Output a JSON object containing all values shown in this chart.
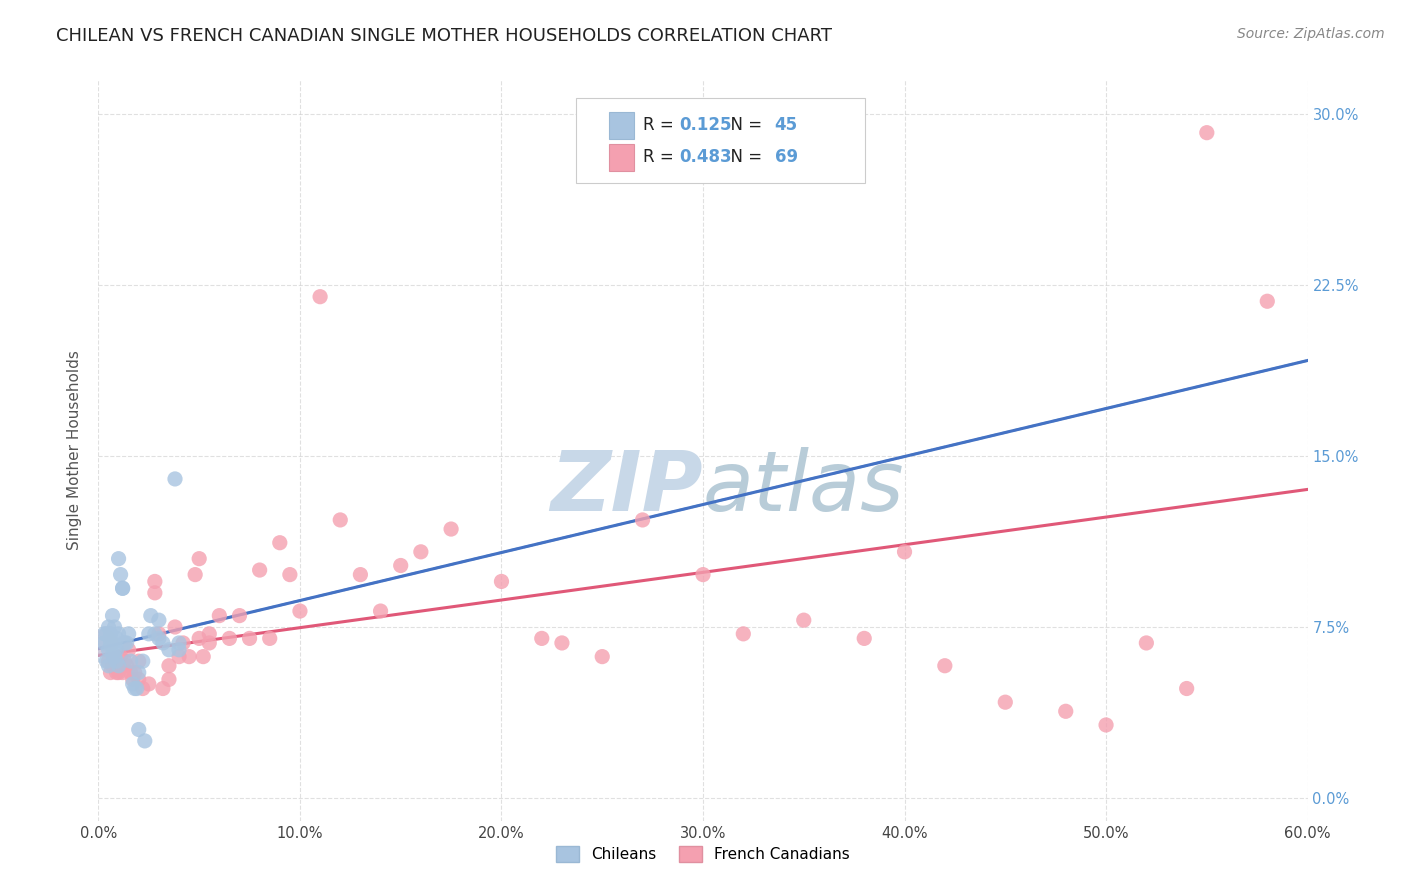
{
  "title": "CHILEAN VS FRENCH CANADIAN SINGLE MOTHER HOUSEHOLDS CORRELATION CHART",
  "source": "Source: ZipAtlas.com",
  "ylabel": "Single Mother Households",
  "xlabel_ticks": [
    "0.0%",
    "10.0%",
    "20.0%",
    "30.0%",
    "40.0%",
    "50.0%",
    "60.0%"
  ],
  "ylabel_ticks": [
    "0.0%",
    "7.5%",
    "15.0%",
    "22.5%",
    "30.0%"
  ],
  "xlim": [
    0.0,
    0.6
  ],
  "ylim": [
    -0.01,
    0.315
  ],
  "chilean_R": 0.125,
  "chilean_N": 45,
  "french_R": 0.483,
  "french_N": 69,
  "chilean_color": "#a8c4e0",
  "french_color": "#f4a0b0",
  "chilean_line_color": "#4472c4",
  "french_line_color": "#e05878",
  "dashed_line_color": "#90b8d8",
  "watermark_color": "#d0dce8",
  "watermark_fontsize": 60,
  "legend_chileans": "Chileans",
  "legend_french": "French Canadians",
  "chilean_points": [
    [
      0.005,
      0.075
    ],
    [
      0.006,
      0.072
    ],
    [
      0.007,
      0.08
    ],
    [
      0.007,
      0.068
    ],
    [
      0.008,
      0.075
    ],
    [
      0.009,
      0.07
    ],
    [
      0.009,
      0.065
    ],
    [
      0.01,
      0.072
    ],
    [
      0.01,
      0.105
    ],
    [
      0.011,
      0.098
    ],
    [
      0.012,
      0.092
    ],
    [
      0.012,
      0.092
    ],
    [
      0.013,
      0.068
    ],
    [
      0.014,
      0.068
    ],
    [
      0.015,
      0.072
    ],
    [
      0.016,
      0.06
    ],
    [
      0.017,
      0.05
    ],
    [
      0.018,
      0.048
    ],
    [
      0.019,
      0.048
    ],
    [
      0.02,
      0.055
    ],
    [
      0.022,
      0.06
    ],
    [
      0.025,
      0.072
    ],
    [
      0.026,
      0.08
    ],
    [
      0.028,
      0.072
    ],
    [
      0.03,
      0.078
    ],
    [
      0.03,
      0.07
    ],
    [
      0.032,
      0.068
    ],
    [
      0.035,
      0.065
    ],
    [
      0.038,
      0.14
    ],
    [
      0.04,
      0.068
    ],
    [
      0.04,
      0.065
    ],
    [
      0.003,
      0.072
    ],
    [
      0.003,
      0.068
    ],
    [
      0.004,
      0.072
    ],
    [
      0.005,
      0.065
    ],
    [
      0.006,
      0.068
    ],
    [
      0.007,
      0.063
    ],
    [
      0.008,
      0.065
    ],
    [
      0.008,
      0.062
    ],
    [
      0.009,
      0.06
    ],
    [
      0.01,
      0.058
    ],
    [
      0.004,
      0.06
    ],
    [
      0.005,
      0.058
    ],
    [
      0.02,
      0.03
    ],
    [
      0.023,
      0.025
    ]
  ],
  "french_points": [
    [
      0.005,
      0.06
    ],
    [
      0.006,
      0.055
    ],
    [
      0.007,
      0.058
    ],
    [
      0.008,
      0.06
    ],
    [
      0.009,
      0.055
    ],
    [
      0.01,
      0.058
    ],
    [
      0.01,
      0.055
    ],
    [
      0.011,
      0.062
    ],
    [
      0.012,
      0.055
    ],
    [
      0.013,
      0.06
    ],
    [
      0.014,
      0.058
    ],
    [
      0.015,
      0.065
    ],
    [
      0.016,
      0.055
    ],
    [
      0.017,
      0.052
    ],
    [
      0.018,
      0.055
    ],
    [
      0.02,
      0.06
    ],
    [
      0.02,
      0.052
    ],
    [
      0.022,
      0.048
    ],
    [
      0.025,
      0.05
    ],
    [
      0.028,
      0.095
    ],
    [
      0.028,
      0.09
    ],
    [
      0.03,
      0.072
    ],
    [
      0.032,
      0.048
    ],
    [
      0.035,
      0.058
    ],
    [
      0.035,
      0.052
    ],
    [
      0.038,
      0.075
    ],
    [
      0.04,
      0.062
    ],
    [
      0.042,
      0.068
    ],
    [
      0.045,
      0.062
    ],
    [
      0.048,
      0.098
    ],
    [
      0.05,
      0.105
    ],
    [
      0.05,
      0.07
    ],
    [
      0.052,
      0.062
    ],
    [
      0.055,
      0.072
    ],
    [
      0.055,
      0.068
    ],
    [
      0.06,
      0.08
    ],
    [
      0.065,
      0.07
    ],
    [
      0.07,
      0.08
    ],
    [
      0.075,
      0.07
    ],
    [
      0.08,
      0.1
    ],
    [
      0.085,
      0.07
    ],
    [
      0.09,
      0.112
    ],
    [
      0.095,
      0.098
    ],
    [
      0.1,
      0.082
    ],
    [
      0.11,
      0.22
    ],
    [
      0.12,
      0.122
    ],
    [
      0.13,
      0.098
    ],
    [
      0.14,
      0.082
    ],
    [
      0.15,
      0.102
    ],
    [
      0.16,
      0.108
    ],
    [
      0.175,
      0.118
    ],
    [
      0.2,
      0.095
    ],
    [
      0.22,
      0.07
    ],
    [
      0.23,
      0.068
    ],
    [
      0.25,
      0.062
    ],
    [
      0.27,
      0.122
    ],
    [
      0.3,
      0.098
    ],
    [
      0.32,
      0.072
    ],
    [
      0.35,
      0.078
    ],
    [
      0.38,
      0.07
    ],
    [
      0.4,
      0.108
    ],
    [
      0.42,
      0.058
    ],
    [
      0.45,
      0.042
    ],
    [
      0.48,
      0.038
    ],
    [
      0.5,
      0.032
    ],
    [
      0.52,
      0.068
    ],
    [
      0.54,
      0.048
    ],
    [
      0.55,
      0.292
    ],
    [
      0.58,
      0.218
    ]
  ],
  "background_color": "#ffffff",
  "grid_color": "#cccccc",
  "title_fontsize": 13,
  "axis_fontsize": 11,
  "tick_fontsize": 10.5,
  "source_fontsize": 10,
  "legend_fontsize": 12,
  "right_tick_color": "#5b9bd5"
}
